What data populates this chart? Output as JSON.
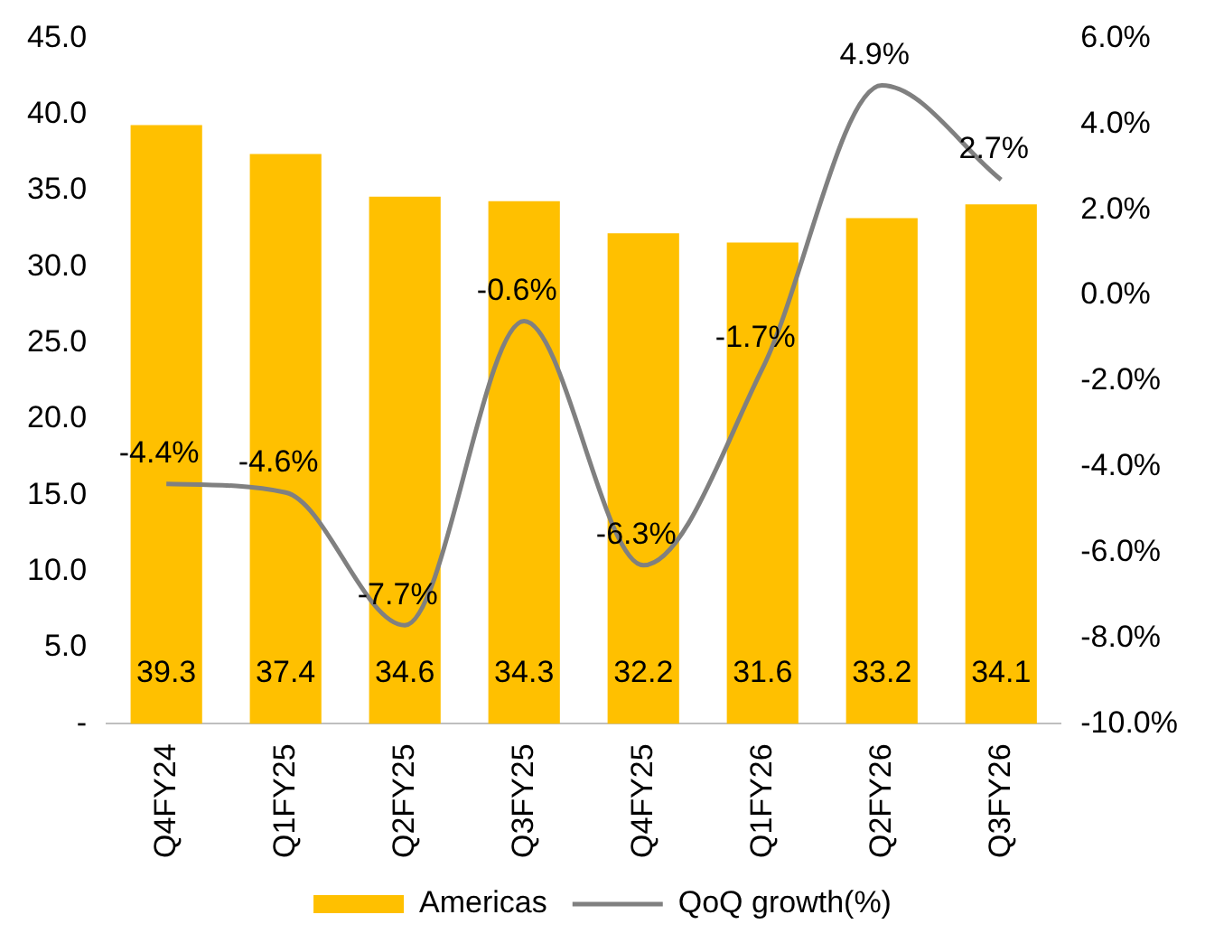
{
  "chart_data": {
    "type": "bar",
    "categories": [
      "Q4FY24",
      "Q1FY25",
      "Q2FY25",
      "Q3FY25",
      "Q4FY25",
      "Q1FY26",
      "Q2FY26",
      "Q3FY26"
    ],
    "series": [
      {
        "name": "Americas",
        "color": "#ffc000",
        "values": [
          39.3,
          37.4,
          34.6,
          34.3,
          32.2,
          31.6,
          33.2,
          34.1
        ],
        "value_labels": [
          "39.3",
          "37.4",
          "34.6",
          "34.3",
          "32.2",
          "31.6",
          "33.2",
          "34.1"
        ]
      },
      {
        "name": "QoQ growth(%)",
        "type": "line",
        "axis": "y2",
        "color": "#808080",
        "values": [
          -4.4,
          -4.6,
          -7.7,
          -0.6,
          -6.3,
          -1.7,
          4.9,
          2.7
        ],
        "value_labels": [
          "-4.4%",
          "-4.6%",
          "-7.7%",
          "-0.6%",
          "-6.3%",
          "-1.7%",
          "4.9%",
          "2.7%"
        ]
      }
    ],
    "ylim": [
      0,
      45
    ],
    "yticks": [
      {
        "value": 0,
        "label": "-"
      },
      {
        "value": 5,
        "label": "5.0"
      },
      {
        "value": 10,
        "label": "10.0"
      },
      {
        "value": 15,
        "label": "15.0"
      },
      {
        "value": 20,
        "label": "20.0"
      },
      {
        "value": 25,
        "label": "25.0"
      },
      {
        "value": 30,
        "label": "30.0"
      },
      {
        "value": 35,
        "label": "35.0"
      },
      {
        "value": 40,
        "label": "40.0"
      },
      {
        "value": 45,
        "label": "45.0"
      }
    ],
    "y2lim": [
      -10,
      6
    ],
    "y2ticks": [
      {
        "value": -10,
        "label": "-10.0%"
      },
      {
        "value": -8,
        "label": "-8.0%"
      },
      {
        "value": -6,
        "label": "-6.0%"
      },
      {
        "value": -4,
        "label": "-4.0%"
      },
      {
        "value": -2,
        "label": "-2.0%"
      },
      {
        "value": 0,
        "label": "0.0%"
      },
      {
        "value": 2,
        "label": "2.0%"
      },
      {
        "value": 4,
        "label": "4.0%"
      },
      {
        "value": 6,
        "label": "6.0%"
      }
    ],
    "grid": false,
    "legend": "bottom",
    "marker": "none",
    "line_style": "solid"
  }
}
